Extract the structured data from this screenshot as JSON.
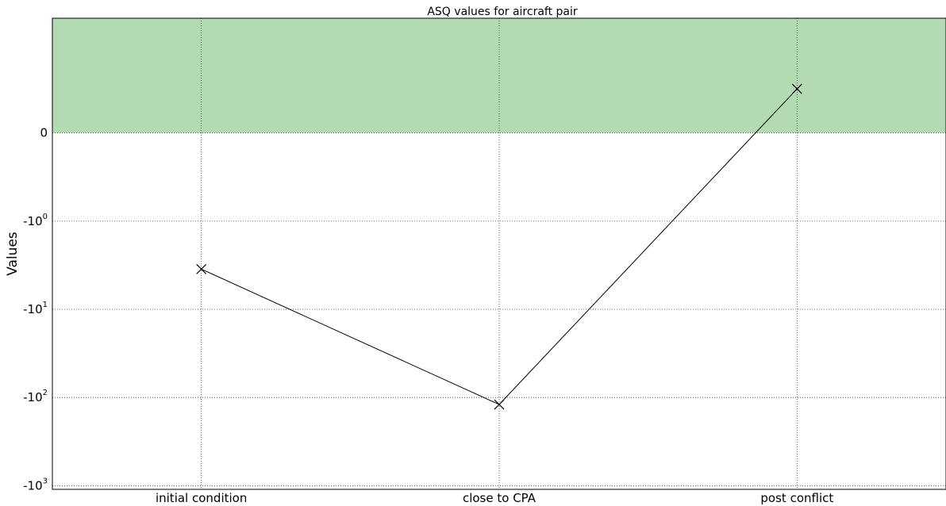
{
  "chart_data": {
    "type": "line",
    "title": "ASQ values for aircraft pair",
    "xlabel": "",
    "ylabel": "Values",
    "yscale": "symlog",
    "categories": [
      "initial condition",
      "close to CPA",
      "post conflict"
    ],
    "series": [
      {
        "values": [
          -3.5,
          -120,
          0.5
        ],
        "color": "#000000",
        "marker": "x"
      }
    ],
    "yticks": [
      0,
      -1,
      -10,
      -100,
      -1000
    ],
    "ytick_labels": [
      {
        "base": "0",
        "exp": ""
      },
      {
        "base": "-10",
        "exp": "0"
      },
      {
        "base": "-10",
        "exp": "1"
      },
      {
        "base": "-10",
        "exp": "2"
      },
      {
        "base": "-10",
        "exp": "3"
      }
    ],
    "ylim": [
      -1100,
      2
    ],
    "shaded_region": {
      "from": 0,
      "to": 2,
      "color": "#b3dab3"
    },
    "grid": true
  }
}
